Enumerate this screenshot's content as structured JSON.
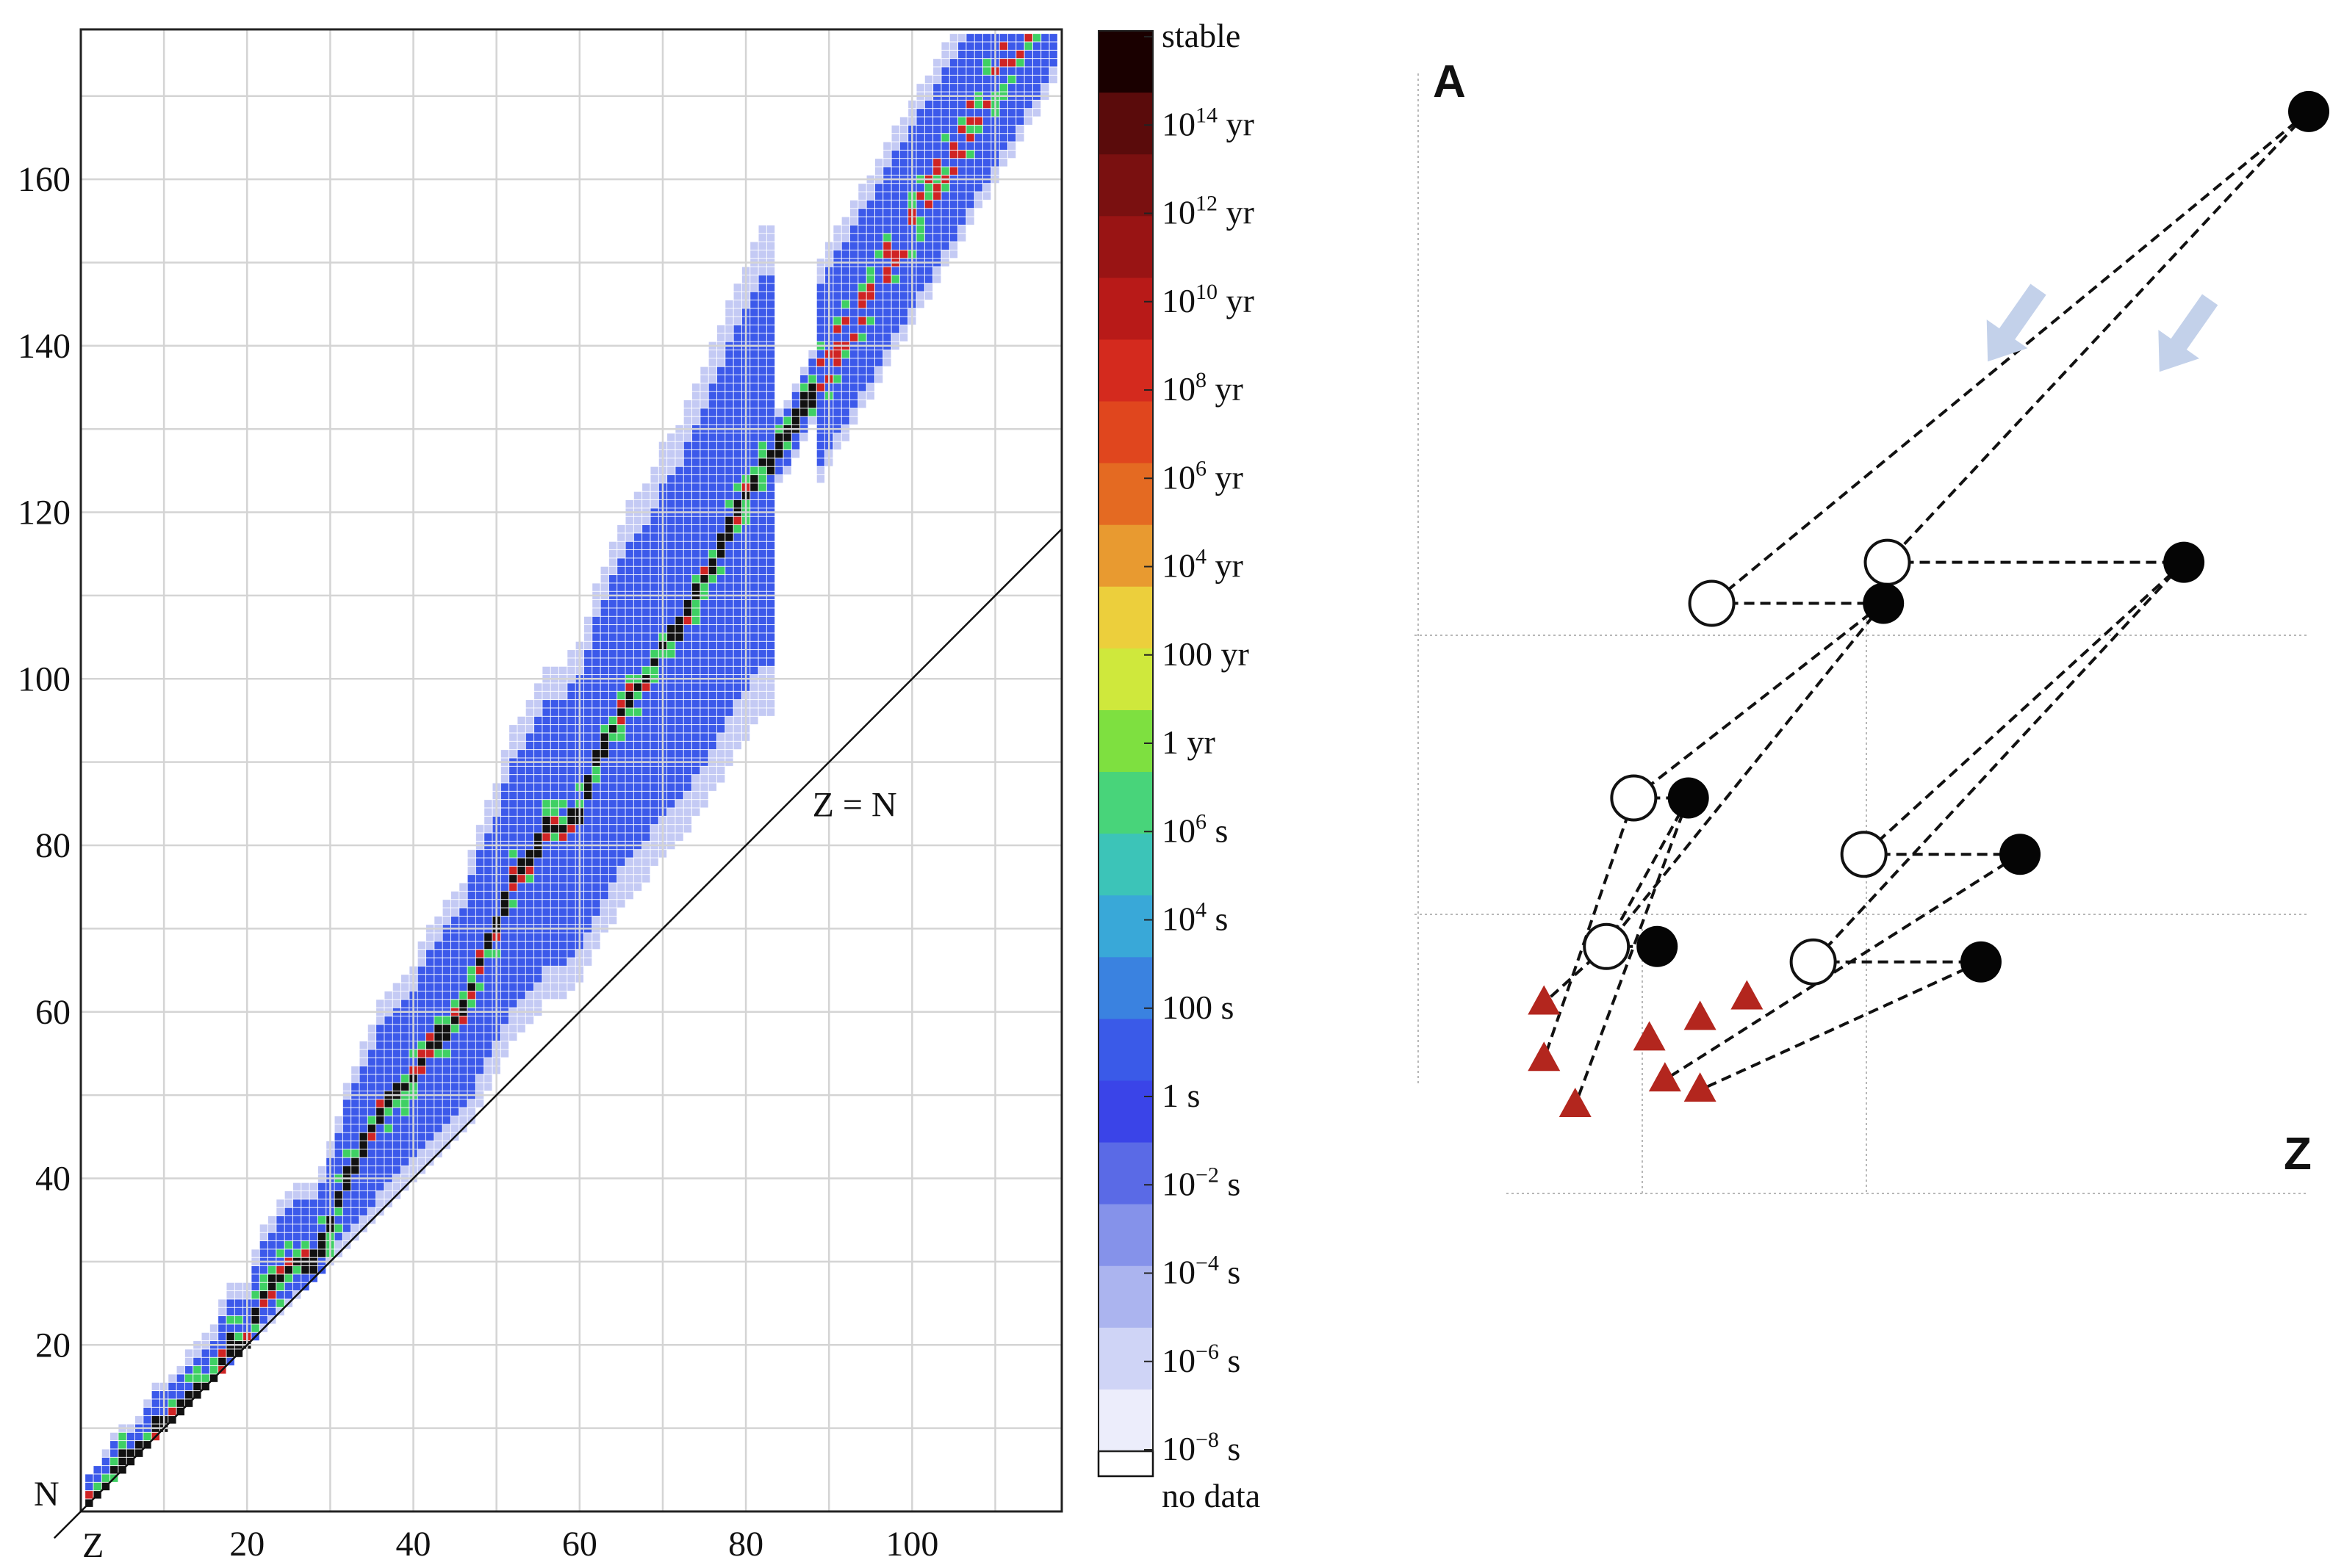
{
  "chart_data": [
    {
      "type": "heatmap",
      "title": "",
      "xlabel": "Z",
      "ylabel": "N",
      "xlim": [
        0,
        118
      ],
      "ylim": [
        0,
        178
      ],
      "x_ticks": [
        "20",
        "40",
        "60",
        "80",
        "100"
      ],
      "x_tick_values": [
        20,
        40,
        60,
        80,
        100
      ],
      "y_ticks": [
        "20",
        "40",
        "60",
        "80",
        "100",
        "120",
        "140",
        "160"
      ],
      "y_tick_values": [
        20,
        40,
        60,
        80,
        100,
        120,
        140,
        160
      ],
      "grid": true,
      "annotation": "Z = N",
      "colorbar": {
        "labels": [
          {
            "base": "",
            "exp": "",
            "unit": "stable"
          },
          {
            "base": "10",
            "exp": "14",
            "unit": " yr"
          },
          {
            "base": "10",
            "exp": "12",
            "unit": " yr"
          },
          {
            "base": "10",
            "exp": "10",
            "unit": " yr"
          },
          {
            "base": "10",
            "exp": "8",
            "unit": " yr"
          },
          {
            "base": "10",
            "exp": "6",
            "unit": " yr"
          },
          {
            "base": "10",
            "exp": "4",
            "unit": " yr"
          },
          {
            "base": "100",
            "exp": "",
            "unit": " yr"
          },
          {
            "base": "1",
            "exp": "",
            "unit": " yr"
          },
          {
            "base": "10",
            "exp": "6",
            "unit": " s"
          },
          {
            "base": "10",
            "exp": "4",
            "unit": " s"
          },
          {
            "base": "100",
            "exp": "",
            "unit": " s"
          },
          {
            "base": "1",
            "exp": "",
            "unit": " s"
          },
          {
            "base": "10",
            "exp": "−2",
            "unit": " s"
          },
          {
            "base": "10",
            "exp": "−4",
            "unit": " s"
          },
          {
            "base": "10",
            "exp": "−6",
            "unit": " s"
          },
          {
            "base": "10",
            "exp": "−8",
            "unit": " s"
          }
        ],
        "no_data_label": "no data",
        "colors": [
          "#1a0000",
          "#5a0b0b",
          "#7a1010",
          "#991414",
          "#b81a18",
          "#d42a1e",
          "#e0461e",
          "#e46a22",
          "#e89a30",
          "#eccf3c",
          "#cfe83c",
          "#7ee040",
          "#48d47a",
          "#3cc4b8",
          "#39a8d8",
          "#3a82e0",
          "#3a5ae8",
          "#3a44e8",
          "#5a6ae6",
          "#8592ea",
          "#abb4ef",
          "#cfd4f6",
          "#ecedfb"
        ]
      },
      "colors": {
        "stable": "#111111",
        "long_lived": "#cf2424",
        "medium": "#3fd064",
        "short": "#3c59ea",
        "very_short": "#c4caf4"
      },
      "valley_of_stability": [
        [
          1,
          1
        ],
        [
          2,
          2
        ],
        [
          3,
          3
        ],
        [
          4,
          5
        ],
        [
          5,
          6
        ],
        [
          6,
          6
        ],
        [
          7,
          7
        ],
        [
          8,
          8
        ],
        [
          9,
          10
        ],
        [
          10,
          10
        ],
        [
          12,
          12
        ],
        [
          14,
          14
        ],
        [
          16,
          16
        ],
        [
          18,
          20
        ],
        [
          20,
          20
        ],
        [
          22,
          26
        ],
        [
          24,
          28
        ],
        [
          26,
          30
        ],
        [
          28,
          30
        ],
        [
          30,
          34
        ],
        [
          32,
          40
        ],
        [
          34,
          44
        ],
        [
          36,
          48
        ],
        [
          38,
          50
        ],
        [
          40,
          52
        ],
        [
          42,
          56
        ],
        [
          44,
          58
        ],
        [
          46,
          60
        ],
        [
          48,
          66
        ],
        [
          50,
          70
        ],
        [
          52,
          76
        ],
        [
          54,
          78
        ],
        [
          56,
          82
        ],
        [
          58,
          82
        ],
        [
          60,
          84
        ],
        [
          62,
          90
        ],
        [
          64,
          94
        ],
        [
          66,
          98
        ],
        [
          68,
          100
        ],
        [
          70,
          104
        ],
        [
          72,
          106
        ],
        [
          74,
          110
        ],
        [
          76,
          114
        ],
        [
          78,
          118
        ],
        [
          80,
          122
        ],
        [
          82,
          126
        ],
        [
          83,
          126
        ]
      ],
      "long_lived_islands": [
        [
          84,
          125
        ],
        [
          86,
          136
        ],
        [
          88,
          138
        ],
        [
          90,
          142
        ],
        [
          92,
          146
        ],
        [
          94,
          150
        ],
        [
          96,
          152
        ],
        [
          98,
          153
        ]
      ]
    },
    {
      "type": "scatter",
      "title": "",
      "xlabel": "Z",
      "ylabel": "A",
      "xlim": [
        0,
        100
      ],
      "ylim": [
        0,
        100
      ],
      "grid": false,
      "series": [
        {
          "name": "open circles",
          "marker": "circle-open",
          "points": [
            [
              23.5,
              49
            ],
            [
              13.5,
              30
            ],
            [
              10,
              15.5
            ],
            [
              46,
              53
            ],
            [
              43,
              24.5
            ],
            [
              36.5,
              14
            ]
          ]
        },
        {
          "name": "filled circles",
          "marker": "circle-filled",
          "points": [
            [
              45.5,
              49
            ],
            [
              20.5,
              30
            ],
            [
              16.5,
              15.5
            ],
            [
              100,
              97
            ],
            [
              84,
              53
            ],
            [
              63,
              24.5
            ],
            [
              58,
              14
            ]
          ]
        },
        {
          "name": "triangles",
          "marker": "triangle",
          "points": [
            [
              2,
              10
            ],
            [
              2,
              4.5
            ],
            [
              6,
              0
            ],
            [
              15.5,
              6.5
            ],
            [
              22,
              8.5
            ],
            [
              28,
              10.5
            ],
            [
              17.5,
              2.5
            ],
            [
              22,
              1.5
            ]
          ]
        }
      ],
      "links": [
        [
          [
            100,
            97
          ],
          [
            23.5,
            49
          ]
        ],
        [
          [
            100,
            97
          ],
          [
            46,
            53
          ]
        ],
        [
          [
            23.5,
            49
          ],
          [
            45.5,
            49
          ]
        ],
        [
          [
            46,
            53
          ],
          [
            84,
            53
          ]
        ],
        [
          [
            13.5,
            30
          ],
          [
            20.5,
            30
          ]
        ],
        [
          [
            10,
            15.5
          ],
          [
            16.5,
            15.5
          ]
        ],
        [
          [
            43,
            24.5
          ],
          [
            63,
            24.5
          ]
        ],
        [
          [
            36.5,
            14
          ],
          [
            58,
            14
          ]
        ],
        [
          [
            45.5,
            49
          ],
          [
            13.5,
            30
          ]
        ],
        [
          [
            45.5,
            49
          ],
          [
            10,
            15.5
          ]
        ],
        [
          [
            20.5,
            30
          ],
          [
            10,
            15.5
          ]
        ],
        [
          [
            20.5,
            30
          ],
          [
            6,
            0
          ]
        ],
        [
          [
            84,
            53
          ],
          [
            43,
            24.5
          ]
        ],
        [
          [
            84,
            53
          ],
          [
            36.5,
            14
          ]
        ],
        [
          [
            63,
            24.5
          ],
          [
            17.5,
            2.5
          ]
        ],
        [
          [
            58,
            14
          ],
          [
            22,
            1.5
          ]
        ],
        [
          [
            10,
            15.5
          ],
          [
            2,
            10
          ]
        ],
        [
          [
            13.5,
            30
          ],
          [
            2,
            4.5
          ]
        ]
      ],
      "arrows": [
        [
          62,
          76
        ],
        [
          84,
          75
        ]
      ]
    }
  ]
}
